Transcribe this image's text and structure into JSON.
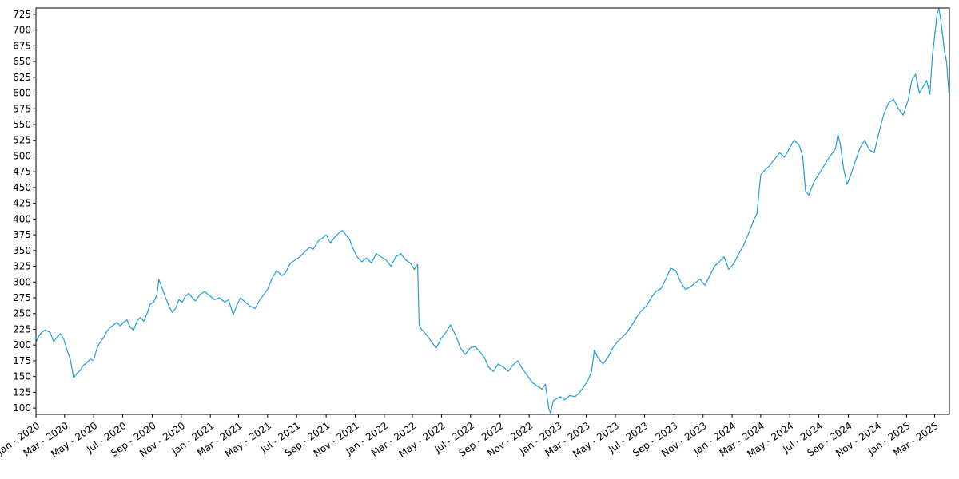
{
  "chart_data": {
    "type": "line",
    "title": "",
    "xlabel": "",
    "ylabel": "",
    "x_range": [
      "2020-01-01",
      "2025-04-01"
    ],
    "ylim": [
      90,
      735
    ],
    "grid": false,
    "legend": "none",
    "y_ticks": [
      100,
      125,
      150,
      175,
      200,
      225,
      250,
      275,
      300,
      325,
      350,
      375,
      400,
      425,
      450,
      475,
      500,
      525,
      550,
      575,
      600,
      625,
      650,
      675,
      700,
      725
    ],
    "x_ticks": [
      {
        "date": "2020-01-01",
        "label": "Jan - 2020"
      },
      {
        "date": "2020-03-01",
        "label": "Mar - 2020"
      },
      {
        "date": "2020-05-01",
        "label": "May - 2020"
      },
      {
        "date": "2020-07-01",
        "label": "Jul - 2020"
      },
      {
        "date": "2020-09-01",
        "label": "Sep - 2020"
      },
      {
        "date": "2020-11-01",
        "label": "Nov - 2020"
      },
      {
        "date": "2021-01-01",
        "label": "Jan - 2021"
      },
      {
        "date": "2021-03-01",
        "label": "Mar - 2021"
      },
      {
        "date": "2021-05-01",
        "label": "May - 2021"
      },
      {
        "date": "2021-07-01",
        "label": "Jul - 2021"
      },
      {
        "date": "2021-09-01",
        "label": "Sep - 2021"
      },
      {
        "date": "2021-11-01",
        "label": "Nov - 2021"
      },
      {
        "date": "2022-01-01",
        "label": "Jan - 2022"
      },
      {
        "date": "2022-03-01",
        "label": "Mar - 2022"
      },
      {
        "date": "2022-05-01",
        "label": "May - 2022"
      },
      {
        "date": "2022-07-01",
        "label": "Jul - 2022"
      },
      {
        "date": "2022-09-01",
        "label": "Sep - 2022"
      },
      {
        "date": "2022-11-01",
        "label": "Nov - 2022"
      },
      {
        "date": "2023-01-01",
        "label": "Jan - 2023"
      },
      {
        "date": "2023-03-01",
        "label": "Mar - 2023"
      },
      {
        "date": "2023-05-01",
        "label": "May - 2023"
      },
      {
        "date": "2023-07-01",
        "label": "Jul - 2023"
      },
      {
        "date": "2023-09-01",
        "label": "Sep - 2023"
      },
      {
        "date": "2023-11-01",
        "label": "Nov - 2023"
      },
      {
        "date": "2024-01-01",
        "label": "Jan - 2024"
      },
      {
        "date": "2024-03-01",
        "label": "Mar - 2024"
      },
      {
        "date": "2024-05-01",
        "label": "May - 2024"
      },
      {
        "date": "2024-07-01",
        "label": "Jul - 2024"
      },
      {
        "date": "2024-09-01",
        "label": "Sep - 2024"
      },
      {
        "date": "2024-11-01",
        "label": "Nov - 2024"
      },
      {
        "date": "2025-01-01",
        "label": "Jan - 2025"
      },
      {
        "date": "2025-03-01",
        "label": "Mar - 2025"
      }
    ],
    "series": [
      {
        "color": "#1f9fd9",
        "points": [
          [
            "2020-01-01",
            205
          ],
          [
            "2020-01-10",
            218
          ],
          [
            "2020-01-20",
            224
          ],
          [
            "2020-01-31",
            220
          ],
          [
            "2020-02-07",
            205
          ],
          [
            "2020-02-14",
            212
          ],
          [
            "2020-02-21",
            218
          ],
          [
            "2020-02-28",
            210
          ],
          [
            "2020-03-06",
            192
          ],
          [
            "2020-03-13",
            178
          ],
          [
            "2020-03-20",
            148
          ],
          [
            "2020-03-27",
            155
          ],
          [
            "2020-04-03",
            160
          ],
          [
            "2020-04-10",
            168
          ],
          [
            "2020-04-17",
            172
          ],
          [
            "2020-04-24",
            178
          ],
          [
            "2020-05-01",
            175
          ],
          [
            "2020-05-08",
            195
          ],
          [
            "2020-05-15",
            205
          ],
          [
            "2020-05-22",
            212
          ],
          [
            "2020-05-29",
            222
          ],
          [
            "2020-06-05",
            228
          ],
          [
            "2020-06-12",
            232
          ],
          [
            "2020-06-19",
            236
          ],
          [
            "2020-06-26",
            230
          ],
          [
            "2020-07-03",
            236
          ],
          [
            "2020-07-10",
            240
          ],
          [
            "2020-07-17",
            228
          ],
          [
            "2020-07-24",
            224
          ],
          [
            "2020-07-31",
            238
          ],
          [
            "2020-08-07",
            244
          ],
          [
            "2020-08-14",
            238
          ],
          [
            "2020-08-21",
            250
          ],
          [
            "2020-08-28",
            265
          ],
          [
            "2020-09-04",
            268
          ],
          [
            "2020-09-11",
            280
          ],
          [
            "2020-09-15",
            304
          ],
          [
            "2020-09-22",
            290
          ],
          [
            "2020-09-29",
            275
          ],
          [
            "2020-10-06",
            262
          ],
          [
            "2020-10-13",
            252
          ],
          [
            "2020-10-20",
            258
          ],
          [
            "2020-10-27",
            272
          ],
          [
            "2020-11-03",
            268
          ],
          [
            "2020-11-10",
            278
          ],
          [
            "2020-11-17",
            282
          ],
          [
            "2020-11-24",
            275
          ],
          [
            "2020-12-01",
            270
          ],
          [
            "2020-12-10",
            280
          ],
          [
            "2020-12-20",
            285
          ],
          [
            "2020-12-31",
            278
          ],
          [
            "2021-01-10",
            272
          ],
          [
            "2021-01-20",
            275
          ],
          [
            "2021-01-31",
            268
          ],
          [
            "2021-02-08",
            272
          ],
          [
            "2021-02-14",
            258
          ],
          [
            "2021-02-18",
            248
          ],
          [
            "2021-02-25",
            262
          ],
          [
            "2021-03-05",
            275
          ],
          [
            "2021-03-15",
            268
          ],
          [
            "2021-03-25",
            262
          ],
          [
            "2021-04-05",
            258
          ],
          [
            "2021-04-15",
            272
          ],
          [
            "2021-04-25",
            282
          ],
          [
            "2021-05-01",
            288
          ],
          [
            "2021-05-10",
            305
          ],
          [
            "2021-05-20",
            318
          ],
          [
            "2021-05-31",
            310
          ],
          [
            "2021-06-08",
            315
          ],
          [
            "2021-06-18",
            330
          ],
          [
            "2021-06-28",
            335
          ],
          [
            "2021-07-08",
            340
          ],
          [
            "2021-07-18",
            348
          ],
          [
            "2021-07-28",
            355
          ],
          [
            "2021-08-05",
            352
          ],
          [
            "2021-08-15",
            365
          ],
          [
            "2021-08-25",
            370
          ],
          [
            "2021-09-01",
            375
          ],
          [
            "2021-09-10",
            362
          ],
          [
            "2021-09-20",
            372
          ],
          [
            "2021-09-28",
            378
          ],
          [
            "2021-10-05",
            382
          ],
          [
            "2021-10-12",
            375
          ],
          [
            "2021-10-20",
            368
          ],
          [
            "2021-10-28",
            352
          ],
          [
            "2021-11-05",
            340
          ],
          [
            "2021-11-15",
            332
          ],
          [
            "2021-11-25",
            338
          ],
          [
            "2021-12-05",
            330
          ],
          [
            "2021-12-15",
            345
          ],
          [
            "2021-12-25",
            340
          ],
          [
            "2022-01-05",
            335
          ],
          [
            "2022-01-15",
            325
          ],
          [
            "2022-01-25",
            340
          ],
          [
            "2022-02-05",
            345
          ],
          [
            "2022-02-15",
            335
          ],
          [
            "2022-02-25",
            330
          ],
          [
            "2022-03-05",
            320
          ],
          [
            "2022-03-12",
            328
          ],
          [
            "2022-03-15",
            232
          ],
          [
            "2022-03-20",
            225
          ],
          [
            "2022-04-01",
            215
          ],
          [
            "2022-04-10",
            205
          ],
          [
            "2022-04-20",
            195
          ],
          [
            "2022-04-30",
            210
          ],
          [
            "2022-05-10",
            220
          ],
          [
            "2022-05-20",
            232
          ],
          [
            "2022-05-31",
            215
          ],
          [
            "2022-06-10",
            195
          ],
          [
            "2022-06-20",
            185
          ],
          [
            "2022-06-30",
            195
          ],
          [
            "2022-07-10",
            198
          ],
          [
            "2022-07-20",
            190
          ],
          [
            "2022-07-30",
            180
          ],
          [
            "2022-08-08",
            165
          ],
          [
            "2022-08-18",
            158
          ],
          [
            "2022-08-28",
            170
          ],
          [
            "2022-09-08",
            165
          ],
          [
            "2022-09-18",
            158
          ],
          [
            "2022-09-28",
            168
          ],
          [
            "2022-10-08",
            175
          ],
          [
            "2022-10-18",
            162
          ],
          [
            "2022-10-28",
            152
          ],
          [
            "2022-11-08",
            140
          ],
          [
            "2022-11-18",
            135
          ],
          [
            "2022-11-28",
            130
          ],
          [
            "2022-12-05",
            138
          ],
          [
            "2022-12-12",
            100
          ],
          [
            "2022-12-16",
            92
          ],
          [
            "2022-12-22",
            112
          ],
          [
            "2023-01-05",
            118
          ],
          [
            "2023-01-15",
            113
          ],
          [
            "2023-01-25",
            120
          ],
          [
            "2023-02-05",
            118
          ],
          [
            "2023-02-15",
            125
          ],
          [
            "2023-02-25",
            135
          ],
          [
            "2023-03-05",
            145
          ],
          [
            "2023-03-12",
            158
          ],
          [
            "2023-03-18",
            192
          ],
          [
            "2023-03-25",
            180
          ],
          [
            "2023-04-05",
            170
          ],
          [
            "2023-04-15",
            180
          ],
          [
            "2023-04-25",
            195
          ],
          [
            "2023-05-05",
            205
          ],
          [
            "2023-05-15",
            212
          ],
          [
            "2023-05-25",
            220
          ],
          [
            "2023-06-05",
            232
          ],
          [
            "2023-06-15",
            245
          ],
          [
            "2023-06-25",
            255
          ],
          [
            "2023-07-05",
            262
          ],
          [
            "2023-07-15",
            275
          ],
          [
            "2023-07-25",
            285
          ],
          [
            "2023-08-05",
            290
          ],
          [
            "2023-08-15",
            305
          ],
          [
            "2023-08-25",
            322
          ],
          [
            "2023-09-05",
            318
          ],
          [
            "2023-09-15",
            300
          ],
          [
            "2023-09-25",
            288
          ],
          [
            "2023-10-05",
            292
          ],
          [
            "2023-10-15",
            298
          ],
          [
            "2023-10-25",
            305
          ],
          [
            "2023-11-05",
            295
          ],
          [
            "2023-11-15",
            310
          ],
          [
            "2023-11-25",
            325
          ],
          [
            "2023-12-05",
            332
          ],
          [
            "2023-12-15",
            340
          ],
          [
            "2023-12-25",
            320
          ],
          [
            "2024-01-05",
            330
          ],
          [
            "2024-01-15",
            345
          ],
          [
            "2024-01-25",
            358
          ],
          [
            "2024-02-05",
            378
          ],
          [
            "2024-02-15",
            398
          ],
          [
            "2024-02-22",
            408
          ],
          [
            "2024-03-01",
            470
          ],
          [
            "2024-03-10",
            478
          ],
          [
            "2024-03-20",
            485
          ],
          [
            "2024-03-30",
            495
          ],
          [
            "2024-04-10",
            505
          ],
          [
            "2024-04-20",
            498
          ],
          [
            "2024-04-30",
            512
          ],
          [
            "2024-05-10",
            525
          ],
          [
            "2024-05-20",
            518
          ],
          [
            "2024-05-28",
            500
          ],
          [
            "2024-06-03",
            445
          ],
          [
            "2024-06-10",
            438
          ],
          [
            "2024-06-20",
            458
          ],
          [
            "2024-06-30",
            470
          ],
          [
            "2024-07-10",
            482
          ],
          [
            "2024-07-20",
            495
          ],
          [
            "2024-07-30",
            505
          ],
          [
            "2024-08-05",
            512
          ],
          [
            "2024-08-10",
            535
          ],
          [
            "2024-08-15",
            518
          ],
          [
            "2024-08-22",
            480
          ],
          [
            "2024-08-29",
            455
          ],
          [
            "2024-09-05",
            468
          ],
          [
            "2024-09-15",
            490
          ],
          [
            "2024-09-25",
            512
          ],
          [
            "2024-10-05",
            525
          ],
          [
            "2024-10-15",
            510
          ],
          [
            "2024-10-25",
            505
          ],
          [
            "2024-11-05",
            540
          ],
          [
            "2024-11-15",
            568
          ],
          [
            "2024-11-25",
            585
          ],
          [
            "2024-12-05",
            590
          ],
          [
            "2024-12-15",
            575
          ],
          [
            "2024-12-25",
            565
          ],
          [
            "2025-01-05",
            590
          ],
          [
            "2025-01-12",
            620
          ],
          [
            "2025-01-20",
            630
          ],
          [
            "2025-01-28",
            600
          ],
          [
            "2025-02-05",
            610
          ],
          [
            "2025-02-12",
            620
          ],
          [
            "2025-02-19",
            598
          ],
          [
            "2025-02-24",
            655
          ],
          [
            "2025-03-01",
            690
          ],
          [
            "2025-03-06",
            725
          ],
          [
            "2025-03-10",
            735
          ],
          [
            "2025-03-14",
            715
          ],
          [
            "2025-03-18",
            690
          ],
          [
            "2025-03-22",
            665
          ],
          [
            "2025-03-26",
            650
          ],
          [
            "2025-03-31",
            600
          ]
        ]
      }
    ]
  }
}
